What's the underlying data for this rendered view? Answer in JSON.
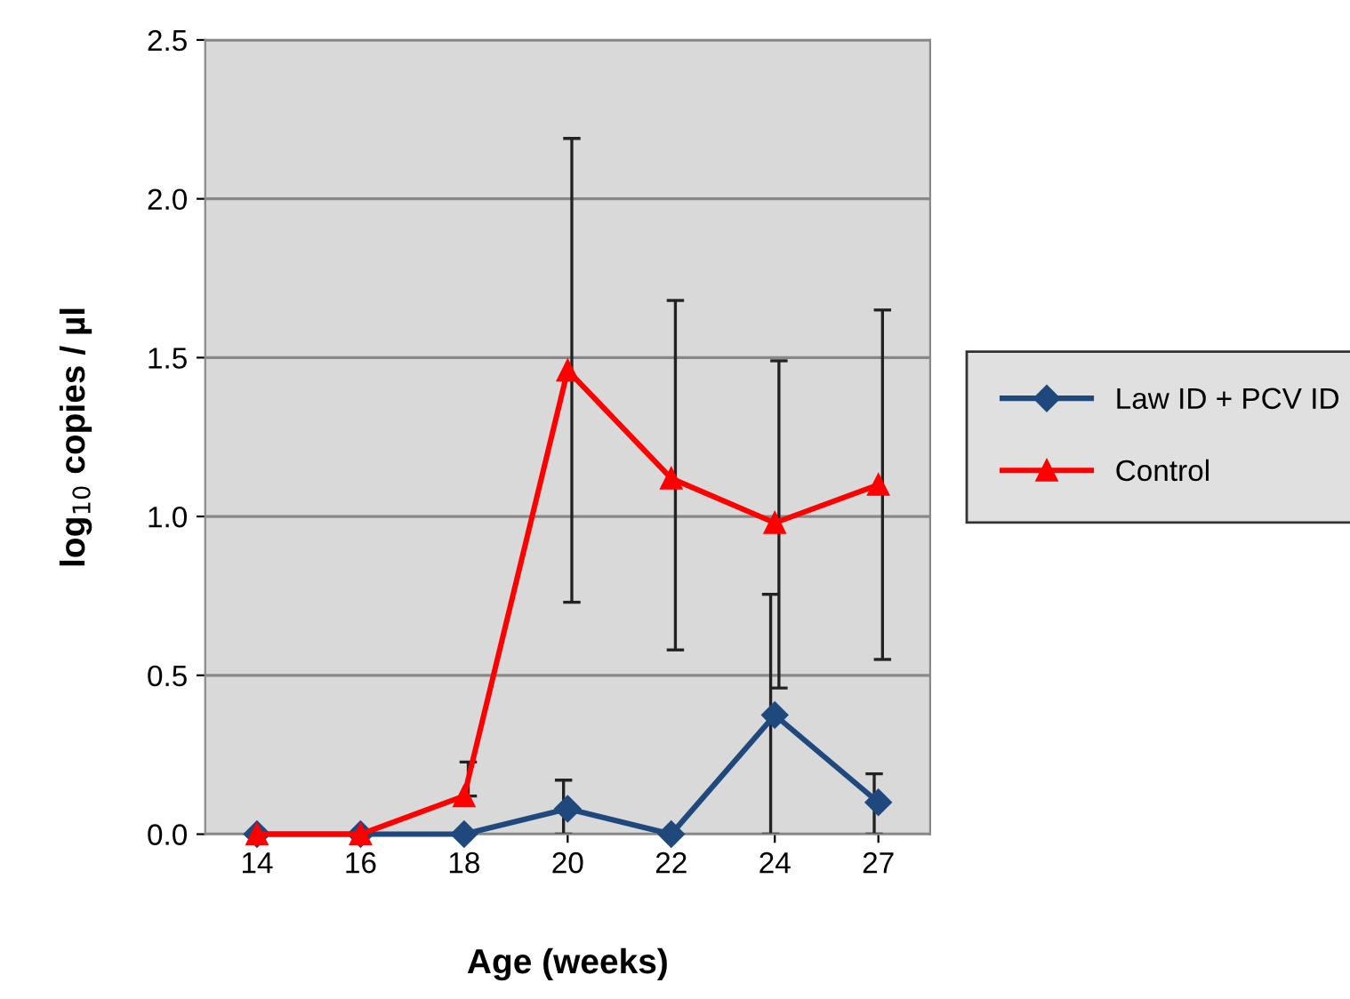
{
  "chart_data": {
    "type": "line",
    "xlabel": "Age (weeks)",
    "ylabel": "log$_{10}$ copies / µl",
    "categories": [
      "14",
      "16",
      "18",
      "20",
      "22",
      "24",
      "27"
    ],
    "series": [
      {
        "name": "Law ID + PCV ID",
        "color": "#1f497d",
        "marker": "diamond",
        "values": [
          0,
          0,
          0,
          0.08,
          0,
          0.375,
          0.1
        ],
        "errors": [
          null,
          null,
          null,
          [
            0,
            0.17
          ],
          null,
          [
            0,
            0.755
          ],
          [
            0,
            0.19
          ]
        ]
      },
      {
        "name": "Control",
        "color": "#ff0000",
        "marker": "triangle",
        "values": [
          0,
          0,
          0.12,
          1.46,
          1.12,
          0.98,
          1.1
        ],
        "errors": [
          null,
          null,
          [
            0.12,
            0.227
          ],
          [
            0.73,
            2.19
          ],
          [
            0.58,
            1.68
          ],
          [
            0.46,
            1.49
          ],
          [
            0.55,
            1.65
          ]
        ]
      }
    ],
    "ylim": [
      0,
      2.5
    ],
    "yticks": [
      {
        "value": 0,
        "label": "0.0"
      },
      {
        "value": 0.5,
        "label": "0.5"
      },
      {
        "value": 1,
        "label": "1.0"
      },
      {
        "value": 1.5,
        "label": "1.5"
      },
      {
        "value": 2,
        "label": "2.0"
      },
      {
        "value": 2.5,
        "label": "2.5"
      }
    ],
    "grid": "y",
    "legend": "right"
  }
}
